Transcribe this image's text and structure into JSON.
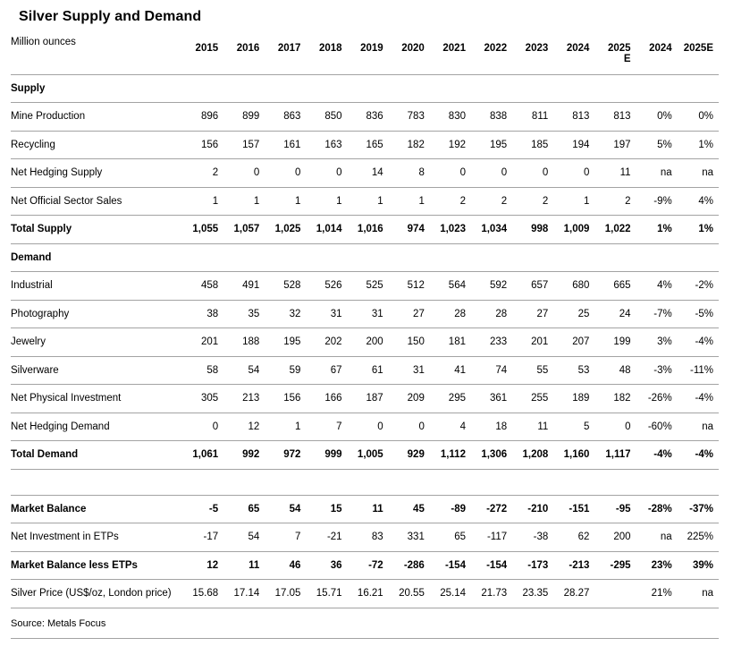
{
  "title": "Silver Supply and Demand",
  "table": {
    "unit_label": "Million ounces",
    "columns": [
      "2015",
      "2016",
      "2017",
      "2018",
      "2019",
      "2020",
      "2021",
      "2022",
      "2023",
      "2024",
      "2025\nE",
      "2024",
      "2025E"
    ],
    "rows": [
      {
        "type": "section",
        "label": "Supply",
        "values": [
          "",
          "",
          "",
          "",
          "",
          "",
          "",
          "",
          "",
          "",
          "",
          "",
          ""
        ]
      },
      {
        "type": "data",
        "label": "Mine Production",
        "values": [
          "896",
          "899",
          "863",
          "850",
          "836",
          "783",
          "830",
          "838",
          "811",
          "813",
          "813",
          "0%",
          "0%"
        ]
      },
      {
        "type": "data",
        "label": "Recycling",
        "values": [
          "156",
          "157",
          "161",
          "163",
          "165",
          "182",
          "192",
          "195",
          "185",
          "194",
          "197",
          "5%",
          "1%"
        ]
      },
      {
        "type": "data",
        "label": "Net Hedging Supply",
        "values": [
          "2",
          "0",
          "0",
          "0",
          "14",
          "8",
          "0",
          "0",
          "0",
          "0",
          "11",
          "na",
          "na"
        ]
      },
      {
        "type": "data",
        "label": "Net Official Sector Sales",
        "values": [
          "1",
          "1",
          "1",
          "1",
          "1",
          "1",
          "2",
          "2",
          "2",
          "1",
          "2",
          "-9%",
          "4%"
        ]
      },
      {
        "type": "total",
        "label": "Total Supply",
        "values": [
          "1,055",
          "1,057",
          "1,025",
          "1,014",
          "1,016",
          "974",
          "1,023",
          "1,034",
          "998",
          "1,009",
          "1,022",
          "1%",
          "1%"
        ]
      },
      {
        "type": "section",
        "label": "Demand",
        "values": [
          "",
          "",
          "",
          "",
          "",
          "",
          "",
          "",
          "",
          "",
          "",
          "",
          ""
        ]
      },
      {
        "type": "data",
        "label": "Industrial",
        "values": [
          "458",
          "491",
          "528",
          "526",
          "525",
          "512",
          "564",
          "592",
          "657",
          "680",
          "665",
          "4%",
          "-2%"
        ]
      },
      {
        "type": "data",
        "label": "Photography",
        "values": [
          "38",
          "35",
          "32",
          "31",
          "31",
          "27",
          "28",
          "28",
          "27",
          "25",
          "24",
          "-7%",
          "-5%"
        ]
      },
      {
        "type": "data",
        "label": "Jewelry",
        "values": [
          "201",
          "188",
          "195",
          "202",
          "200",
          "150",
          "181",
          "233",
          "201",
          "207",
          "199",
          "3%",
          "-4%"
        ]
      },
      {
        "type": "data",
        "label": "Silverware",
        "values": [
          "58",
          "54",
          "59",
          "67",
          "61",
          "31",
          "41",
          "74",
          "55",
          "53",
          "48",
          "-3%",
          "-11%"
        ]
      },
      {
        "type": "data",
        "label": "Net Physical Investment",
        "values": [
          "305",
          "213",
          "156",
          "166",
          "187",
          "209",
          "295",
          "361",
          "255",
          "189",
          "182",
          "-26%",
          "-4%"
        ]
      },
      {
        "type": "data",
        "label": "Net Hedging Demand",
        "values": [
          "0",
          "12",
          "1",
          "7",
          "0",
          "0",
          "4",
          "18",
          "11",
          "5",
          "0",
          "-60%",
          "na"
        ]
      },
      {
        "type": "total",
        "label": "Total Demand",
        "values": [
          "1,061",
          "992",
          "972",
          "999",
          "1,005",
          "929",
          "1,112",
          "1,306",
          "1,208",
          "1,160",
          "1,117",
          "-4%",
          "-4%"
        ]
      },
      {
        "type": "spacer",
        "label": "",
        "values": [
          "",
          "",
          "",
          "",
          "",
          "",
          "",
          "",
          "",
          "",
          "",
          "",
          ""
        ]
      },
      {
        "type": "total",
        "label": "Market Balance",
        "values": [
          "-5",
          "65",
          "54",
          "15",
          "11",
          "45",
          "-89",
          "-272",
          "-210",
          "-151",
          "-95",
          "-28%",
          "-37%"
        ]
      },
      {
        "type": "data",
        "label": "Net Investment in ETPs",
        "values": [
          "-17",
          "54",
          "7",
          "-21",
          "83",
          "331",
          "65",
          "-117",
          "-38",
          "62",
          "200",
          "na",
          "225%"
        ]
      },
      {
        "type": "total",
        "label": "Market Balance less ETPs",
        "values": [
          "12",
          "11",
          "46",
          "36",
          "-72",
          "-286",
          "-154",
          "-154",
          "-173",
          "-213",
          "-295",
          "23%",
          "39%"
        ]
      },
      {
        "type": "data",
        "label": "Silver Price (US$/oz, London price)",
        "values": [
          "15.68",
          "17.14",
          "17.05",
          "15.71",
          "16.21",
          "20.55",
          "25.14",
          "21.73",
          "23.35",
          "28.27",
          "",
          "21%",
          "na"
        ]
      }
    ]
  },
  "source": "Source: Metals Focus"
}
